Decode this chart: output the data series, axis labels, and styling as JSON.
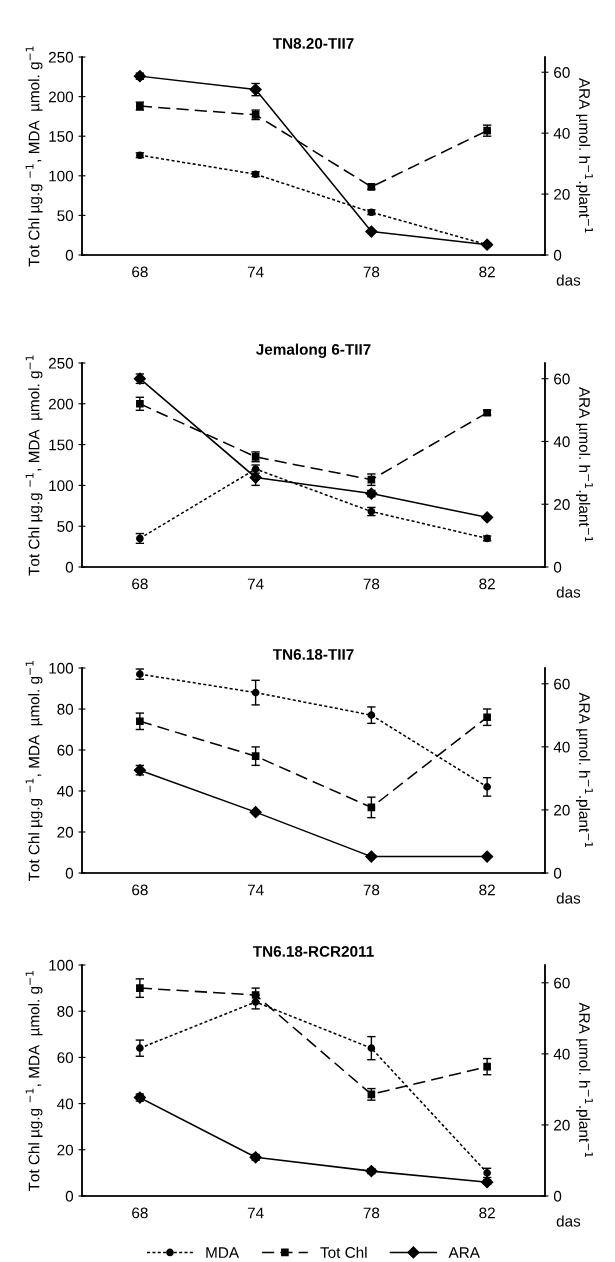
{
  "chart_data": [
    {
      "type": "line",
      "title": "TN8.20-TII7",
      "xlabel": "das",
      "ylabel": "Tot Chl µg.g $^{−1}$, MDA  µmol. g$^{−1}$",
      "y2label": "ARA µmol. h$^{−1}$.plant$^{−1}$",
      "categories": [
        "68",
        "74",
        "78",
        "82"
      ],
      "ylim": [
        0,
        250
      ],
      "yticks": [
        0,
        50,
        100,
        150,
        200,
        250
      ],
      "y2lim": [
        0,
        65
      ],
      "y2ticks": [
        0,
        20,
        40,
        60
      ],
      "grid": false,
      "legend": false,
      "series": [
        {
          "color": "#000000",
          "marker": "circle",
          "line_style": "dotted",
          "values": [
            126,
            102,
            54,
            13
          ],
          "errors": [
            3,
            3,
            3,
            2
          ]
        },
        {
          "color": "#000000",
          "marker": "square",
          "line_style": "dashed",
          "values": [
            188,
            177,
            86,
            157
          ],
          "errors": [
            5,
            6,
            3,
            7
          ]
        },
        {
          "color": "#000000",
          "marker": "diamond",
          "line_style": "solid",
          "axis": "y2",
          "values": [
            58.7,
            54.3,
            7.7,
            3.4
          ],
          "errors": [
            1,
            2,
            null,
            null
          ]
        }
      ]
    },
    {
      "type": "line",
      "title": "Jemalong 6-TII7",
      "xlabel": "das",
      "ylabel": "Tot Chl µg.g $^{−1}$, MDA  µmol. g$^{−1}$",
      "y2label": "ARA µmol. h$^{−1}$.plant$^{−1}$",
      "categories": [
        "68",
        "74",
        "78",
        "82"
      ],
      "ylim": [
        0,
        250
      ],
      "yticks": [
        0,
        50,
        100,
        150,
        200,
        250
      ],
      "y2lim": [
        0,
        65
      ],
      "y2ticks": [
        0,
        20,
        40,
        60
      ],
      "grid": false,
      "legend": false,
      "series": [
        {
          "color": "#000000",
          "marker": "circle",
          "line_style": "dotted",
          "values": [
            35,
            120,
            68,
            35
          ],
          "errors": [
            6,
            5,
            5,
            3
          ]
        },
        {
          "color": "#000000",
          "marker": "square",
          "line_style": "dashed",
          "values": [
            200,
            135,
            107,
            189
          ],
          "errors": [
            8,
            6,
            7,
            3
          ]
        },
        {
          "color": "#000000",
          "marker": "diamond",
          "line_style": "solid",
          "axis": "y2",
          "values": [
            60,
            28.5,
            23.4,
            15.8
          ],
          "errors": [
            1.5,
            2.5,
            1,
            0.5
          ]
        }
      ]
    },
    {
      "type": "line",
      "title": "TN6.18-TII7",
      "xlabel": "das",
      "ylabel": "Tot Chl µg.g $^{−1}$, MDA  µmol. g$^{−1}$",
      "y2label": "ARA µmol. h$^{−1}$.plant$^{−1}$",
      "categories": [
        "68",
        "74",
        "78",
        "82"
      ],
      "ylim": [
        0,
        100
      ],
      "yticks": [
        0,
        20,
        40,
        60,
        80,
        100
      ],
      "y2lim": [
        0,
        65
      ],
      "y2ticks": [
        0,
        20,
        40,
        60
      ],
      "grid": false,
      "legend": false,
      "series": [
        {
          "color": "#000000",
          "marker": "circle",
          "line_style": "dotted",
          "values": [
            97,
            88,
            77,
            42
          ],
          "errors": [
            2.5,
            6,
            4,
            4.5
          ]
        },
        {
          "color": "#000000",
          "marker": "square",
          "line_style": "dashed",
          "values": [
            74,
            57,
            32,
            76
          ],
          "errors": [
            4,
            4.5,
            5,
            4
          ]
        },
        {
          "color": "#000000",
          "marker": "diamond",
          "line_style": "solid",
          "axis": "y2",
          "values": [
            32.6,
            19.3,
            5.2,
            5.2
          ],
          "errors": [
            1.5,
            null,
            null,
            null
          ]
        }
      ]
    },
    {
      "type": "line",
      "title": "TN6.18-RCR2011",
      "xlabel": "das",
      "ylabel": "Tot Chl µg.g $^{−1}$, MDA  µmol. g$^{−1}$",
      "y2label": "ARA µmol. h$^{−1}$.plant$^{−1}$",
      "categories": [
        "68",
        "74",
        "78",
        "82"
      ],
      "ylim": [
        0,
        100
      ],
      "yticks": [
        0,
        20,
        40,
        60,
        80,
        100
      ],
      "y2lim": [
        0,
        65
      ],
      "y2ticks": [
        0,
        20,
        40,
        60
      ],
      "grid": false,
      "legend": "bottom",
      "series": [
        {
          "name": "MDA",
          "color": "#000000",
          "marker": "circle",
          "line_style": "dotted",
          "values": [
            64,
            84,
            64,
            10
          ],
          "errors": [
            3.5,
            3,
            5,
            2
          ]
        },
        {
          "name": "Tot Chl",
          "color": "#000000",
          "marker": "square",
          "line_style": "dashed",
          "values": [
            90,
            87,
            44,
            56
          ],
          "errors": [
            4,
            3,
            2.5,
            3.5
          ]
        },
        {
          "name": "ARA",
          "color": "#000000",
          "marker": "diamond",
          "line_style": "solid",
          "axis": "y2",
          "values": [
            27.7,
            10.9,
            7.0,
            3.9
          ],
          "errors": [
            1,
            0.8,
            0.7,
            0.6
          ]
        }
      ]
    }
  ]
}
